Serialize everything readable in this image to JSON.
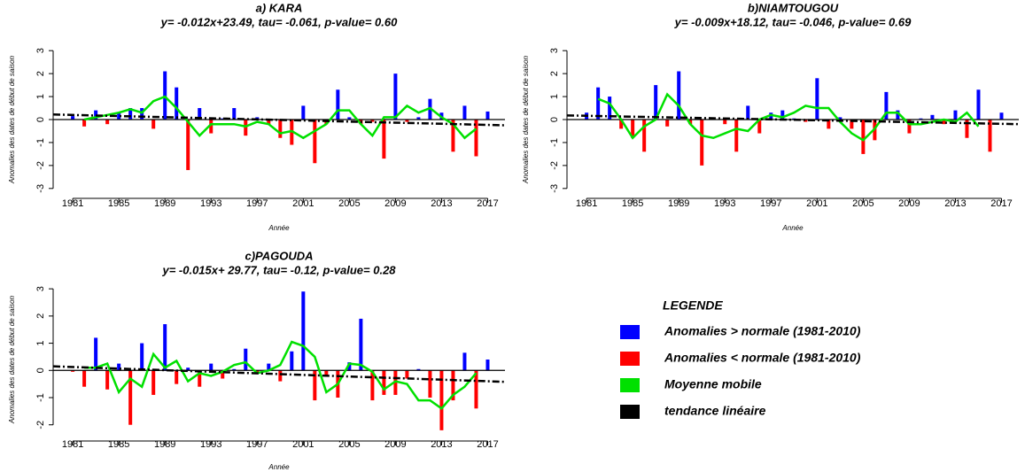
{
  "chart_data": [
    {
      "type": "bar",
      "title": "a) KARA",
      "subtitle": "y= -0.012x+23.49, tau= -0.061, p-value= 0.60",
      "ylabel": "Anomalies des dates de début de saison",
      "xlabel": "Année",
      "x": [
        1981,
        1982,
        1983,
        1984,
        1985,
        1986,
        1987,
        1988,
        1989,
        1990,
        1991,
        1992,
        1993,
        1994,
        1995,
        1996,
        1997,
        1998,
        1999,
        2000,
        2001,
        2002,
        2003,
        2004,
        2005,
        2006,
        2007,
        2008,
        2009,
        2010,
        2011,
        2012,
        2013,
        2014,
        2015,
        2016,
        2017
      ],
      "xlim": [
        1979.3,
        2018.5
      ],
      "xticks": [
        1981,
        1985,
        1989,
        1993,
        1997,
        2001,
        2005,
        2009,
        2013,
        2017
      ],
      "ylim": [
        -3.2,
        3.2
      ],
      "yticks": [
        -3,
        -2,
        -1,
        0,
        1,
        2,
        3
      ],
      "series": [
        {
          "name": "Anomalies > normale (1981-2010)",
          "type": "bar",
          "color": "#0000ff",
          "values": [
            0.15,
            null,
            0.4,
            null,
            0.3,
            0.5,
            0.5,
            null,
            2.1,
            1.4,
            null,
            0.5,
            null,
            0.05,
            0.5,
            null,
            0.1,
            null,
            null,
            null,
            0.6,
            null,
            null,
            1.3,
            0.1,
            null,
            null,
            null,
            2.0,
            null,
            0.1,
            0.9,
            0.3,
            null,
            0.6,
            null,
            0.35
          ]
        },
        {
          "name": "Anomalies < normale (1981-2010)",
          "type": "bar",
          "color": "#ff0000",
          "values": [
            null,
            -0.3,
            null,
            -0.2,
            null,
            null,
            null,
            -0.4,
            null,
            null,
            -2.2,
            null,
            -0.6,
            null,
            null,
            -0.7,
            null,
            -0.2,
            -0.8,
            -1.1,
            null,
            -1.9,
            -0.2,
            null,
            null,
            -0.2,
            -0.1,
            -1.7,
            null,
            -0.1,
            null,
            null,
            null,
            -1.4,
            null,
            -1.6,
            null
          ]
        },
        {
          "name": "Moyenne mobile",
          "type": "line",
          "color": "#00e000",
          "values": [
            null,
            0.0,
            0.1,
            0.2,
            0.3,
            0.45,
            0.3,
            0.8,
            1.0,
            0.5,
            -0.1,
            -0.7,
            -0.2,
            -0.2,
            -0.2,
            -0.3,
            -0.1,
            -0.2,
            -0.6,
            -0.5,
            -0.8,
            -0.5,
            -0.2,
            0.4,
            0.4,
            -0.2,
            -0.7,
            0.1,
            0.1,
            0.6,
            0.3,
            0.5,
            0.1,
            -0.2,
            -0.8,
            -0.4,
            null
          ]
        },
        {
          "name": "tendance linéaire",
          "type": "line",
          "style": "dashed",
          "color": "#000000",
          "x": [
            1979.3,
            2018.5
          ],
          "values": [
            0.22,
            -0.25
          ]
        }
      ]
    },
    {
      "type": "bar",
      "title": "b)NIAMTOUGOU",
      "subtitle": "y= -0.009x+18.12, tau= -0.046, p-value= 0.69",
      "ylabel": "Anomalies des dates de début de saison",
      "xlabel": "Année",
      "x": [
        1981,
        1982,
        1983,
        1984,
        1985,
        1986,
        1987,
        1988,
        1989,
        1990,
        1991,
        1992,
        1993,
        1994,
        1995,
        1996,
        1997,
        1998,
        1999,
        2000,
        2001,
        2002,
        2003,
        2004,
        2005,
        2006,
        2007,
        2008,
        2009,
        2010,
        2011,
        2012,
        2013,
        2014,
        2015,
        2016,
        2017
      ],
      "xlim": [
        1979.3,
        2018.5
      ],
      "xticks": [
        1981,
        1985,
        1989,
        1993,
        1997,
        2001,
        2005,
        2009,
        2013,
        2017
      ],
      "ylim": [
        -3.2,
        3.2
      ],
      "yticks": [
        -3,
        -2,
        -1,
        0,
        1,
        2,
        3
      ],
      "series": [
        {
          "name": "Anomalies > normale (1981-2010)",
          "type": "bar",
          "color": "#0000ff",
          "values": [
            0.3,
            1.4,
            1.0,
            null,
            null,
            null,
            1.5,
            null,
            2.1,
            null,
            null,
            0.05,
            null,
            null,
            0.6,
            null,
            0.3,
            0.4,
            0.05,
            null,
            1.8,
            null,
            0.1,
            null,
            null,
            null,
            1.2,
            0.4,
            null,
            0.05,
            0.2,
            null,
            0.4,
            null,
            1.3,
            null,
            0.3
          ]
        },
        {
          "name": "Anomalies < normale (1981-2010)",
          "type": "bar",
          "color": "#ff0000",
          "values": [
            null,
            null,
            null,
            -0.4,
            -0.8,
            -1.4,
            null,
            -0.3,
            null,
            -0.2,
            -2.0,
            null,
            -0.2,
            -1.4,
            null,
            -0.6,
            null,
            null,
            null,
            -0.1,
            null,
            -0.4,
            null,
            -0.4,
            -1.5,
            -0.9,
            null,
            null,
            -0.6,
            null,
            null,
            -0.2,
            null,
            -0.8,
            null,
            -1.4,
            null
          ]
        },
        {
          "name": "Moyenne mobile",
          "type": "line",
          "color": "#00e000",
          "values": [
            null,
            0.9,
            0.7,
            0.0,
            -0.8,
            -0.3,
            0.0,
            1.1,
            0.6,
            -0.2,
            -0.7,
            -0.8,
            -0.6,
            -0.4,
            -0.5,
            0.0,
            0.2,
            0.1,
            0.3,
            0.6,
            0.5,
            0.5,
            -0.1,
            -0.6,
            -0.9,
            -0.4,
            0.3,
            0.3,
            -0.2,
            -0.2,
            -0.1,
            0.0,
            -0.1,
            0.3,
            -0.3,
            null,
            null
          ]
        },
        {
          "name": "tendance linéaire",
          "type": "line",
          "style": "dashed",
          "color": "#000000",
          "x": [
            1979.3,
            2018.5
          ],
          "values": [
            0.18,
            -0.2
          ]
        }
      ]
    },
    {
      "type": "bar",
      "title": "c)PAGOUDA",
      "subtitle": "y= -0.015x+ 29.77, tau= -0.12, p-value= 0.28",
      "ylabel": "Anomalies des dates de début de saison",
      "xlabel": "Année",
      "x": [
        1981,
        1982,
        1983,
        1984,
        1985,
        1986,
        1987,
        1988,
        1989,
        1990,
        1991,
        1992,
        1993,
        1994,
        1995,
        1996,
        1997,
        1998,
        1999,
        2000,
        2001,
        2002,
        2003,
        2004,
        2005,
        2006,
        2007,
        2008,
        2009,
        2010,
        2011,
        2012,
        2013,
        2014,
        2015,
        2016,
        2017
      ],
      "xlim": [
        1979.3,
        2018.5
      ],
      "xticks": [
        1981,
        1985,
        1989,
        1993,
        1997,
        2001,
        2005,
        2009,
        2013,
        2017
      ],
      "ylim": [
        -2.4,
        3.2
      ],
      "yticks": [
        -2,
        -1,
        0,
        1,
        2,
        3
      ],
      "series": [
        {
          "name": "Anomalies > normale (1981-2010)",
          "type": "bar",
          "color": "#0000ff",
          "values": [
            null,
            null,
            1.2,
            null,
            0.25,
            null,
            1.0,
            null,
            1.7,
            null,
            0.1,
            null,
            0.25,
            null,
            0.05,
            0.8,
            null,
            0.25,
            null,
            0.7,
            2.9,
            null,
            null,
            null,
            0.3,
            1.9,
            null,
            null,
            null,
            null,
            0.05,
            null,
            null,
            null,
            0.65,
            null,
            0.4
          ]
        },
        {
          "name": "Anomalies < normale (1981-2010)",
          "type": "bar",
          "color": "#ff0000",
          "values": [
            -0.05,
            -0.6,
            null,
            -0.7,
            null,
            -2.0,
            null,
            -0.9,
            null,
            -0.5,
            null,
            -0.6,
            null,
            -0.3,
            null,
            null,
            -0.1,
            null,
            -0.4,
            null,
            null,
            -1.1,
            -0.2,
            -1.0,
            null,
            null,
            -1.1,
            -0.9,
            -0.9,
            -0.3,
            null,
            -1.0,
            -2.2,
            -1.1,
            null,
            -1.4,
            null
          ]
        },
        {
          "name": "Moyenne mobile",
          "type": "line",
          "color": "#00e000",
          "values": [
            null,
            0.1,
            0.1,
            0.25,
            -0.8,
            -0.3,
            -0.6,
            0.6,
            0.1,
            0.35,
            -0.4,
            -0.1,
            -0.2,
            -0.05,
            0.2,
            0.3,
            -0.1,
            0.0,
            0.2,
            1.05,
            0.9,
            0.5,
            -0.8,
            -0.5,
            0.25,
            0.2,
            -0.05,
            -0.7,
            -0.4,
            -0.5,
            -1.1,
            -1.1,
            -1.4,
            -0.9,
            -0.6,
            -0.1,
            null
          ]
        },
        {
          "name": "tendance linéaire",
          "type": "line",
          "style": "dashed",
          "color": "#000000",
          "x": [
            1979.3,
            2018.5
          ],
          "values": [
            0.15,
            -0.42
          ]
        }
      ]
    }
  ],
  "legend": {
    "title": "LEGENDE"
  }
}
